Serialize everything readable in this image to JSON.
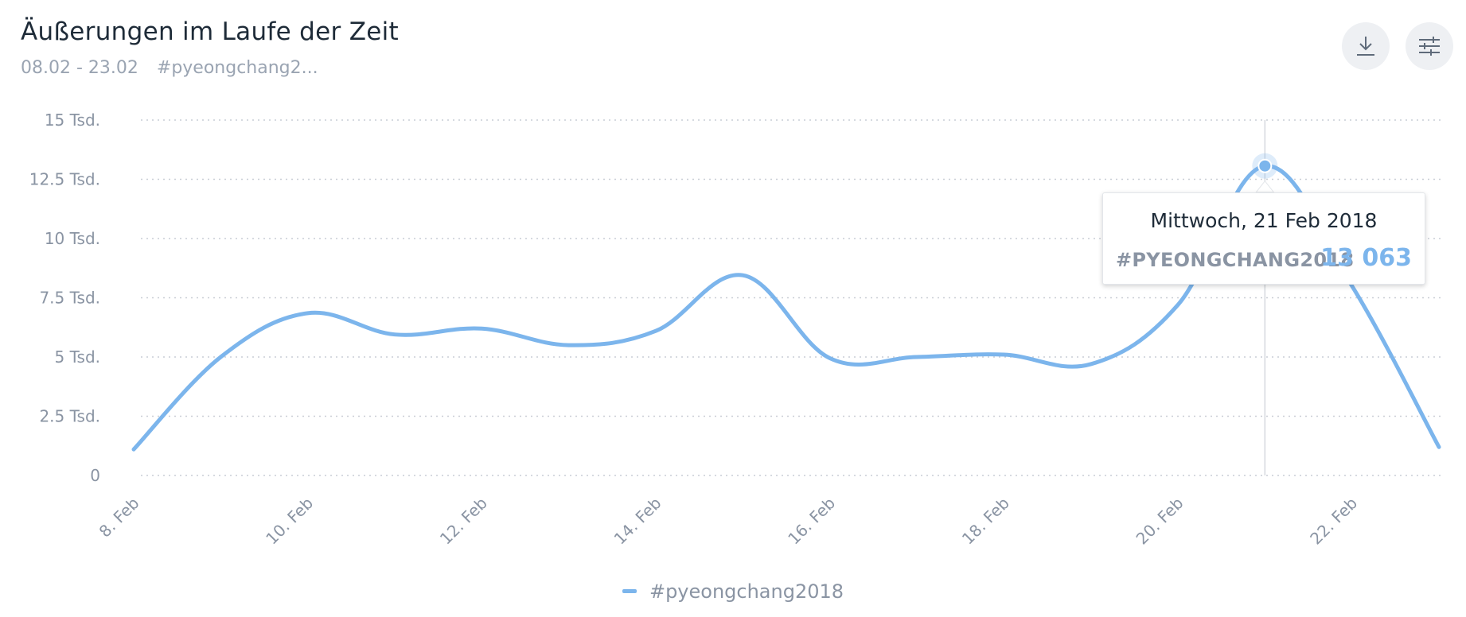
{
  "header": {
    "title": "Äußerungen im Laufe der Zeit",
    "date_range": "08.02 - 23.02",
    "hashtag_short": "#pyeongchang2..."
  },
  "toolbar": {
    "download_icon": "download-icon",
    "settings_icon": "sliders-icon"
  },
  "colors": {
    "series": "#7cb5ec",
    "grid": "#c9ced6",
    "crosshair": "#d5d9de"
  },
  "tooltip": {
    "date": "Mittwoch, 21 Feb 2018",
    "series": "#PYEONGCHANG2018",
    "value": "13 063"
  },
  "legend": {
    "label": "#pyeongchang2018"
  },
  "chart_data": {
    "type": "line",
    "grid": "horizontal-dotted",
    "legend_position": "bottom-center",
    "ylim": [
      0,
      15000
    ],
    "yticks": [
      {
        "value": 0,
        "label": "0"
      },
      {
        "value": 2500,
        "label": "2.5 Tsd."
      },
      {
        "value": 5000,
        "label": "5 Tsd."
      },
      {
        "value": 7500,
        "label": "7.5 Tsd."
      },
      {
        "value": 10000,
        "label": "10 Tsd."
      },
      {
        "value": 12500,
        "label": "12.5 Tsd."
      },
      {
        "value": 15000,
        "label": "15 Tsd."
      }
    ],
    "xlim": [
      "2018-02-08",
      "2018-02-23"
    ],
    "xticks": [
      {
        "date": "2018-02-08",
        "label": "8. Feb"
      },
      {
        "date": "2018-02-10",
        "label": "10. Feb"
      },
      {
        "date": "2018-02-12",
        "label": "12. Feb"
      },
      {
        "date": "2018-02-14",
        "label": "14. Feb"
      },
      {
        "date": "2018-02-16",
        "label": "16. Feb"
      },
      {
        "date": "2018-02-18",
        "label": "18. Feb"
      },
      {
        "date": "2018-02-20",
        "label": "20. Feb"
      },
      {
        "date": "2018-02-22",
        "label": "22. Feb"
      }
    ],
    "series": [
      {
        "name": "#pyeongchang2018",
        "points": [
          {
            "x": "2018-02-08",
            "y": 1100
          },
          {
            "x": "2018-02-09",
            "y": 5000
          },
          {
            "x": "2018-02-10",
            "y": 6850
          },
          {
            "x": "2018-02-11",
            "y": 5950
          },
          {
            "x": "2018-02-12",
            "y": 6200
          },
          {
            "x": "2018-02-13",
            "y": 5500
          },
          {
            "x": "2018-02-14",
            "y": 6100
          },
          {
            "x": "2018-02-15",
            "y": 8450
          },
          {
            "x": "2018-02-16",
            "y": 4950
          },
          {
            "x": "2018-02-17",
            "y": 5000
          },
          {
            "x": "2018-02-18",
            "y": 5100
          },
          {
            "x": "2018-02-19",
            "y": 4700
          },
          {
            "x": "2018-02-20",
            "y": 7200
          },
          {
            "x": "2018-02-21",
            "y": 13063
          },
          {
            "x": "2018-02-22",
            "y": 8000
          },
          {
            "x": "2018-02-23",
            "y": 1200
          }
        ]
      }
    ],
    "highlighted_point": {
      "x": "2018-02-21",
      "y": 13063
    }
  }
}
